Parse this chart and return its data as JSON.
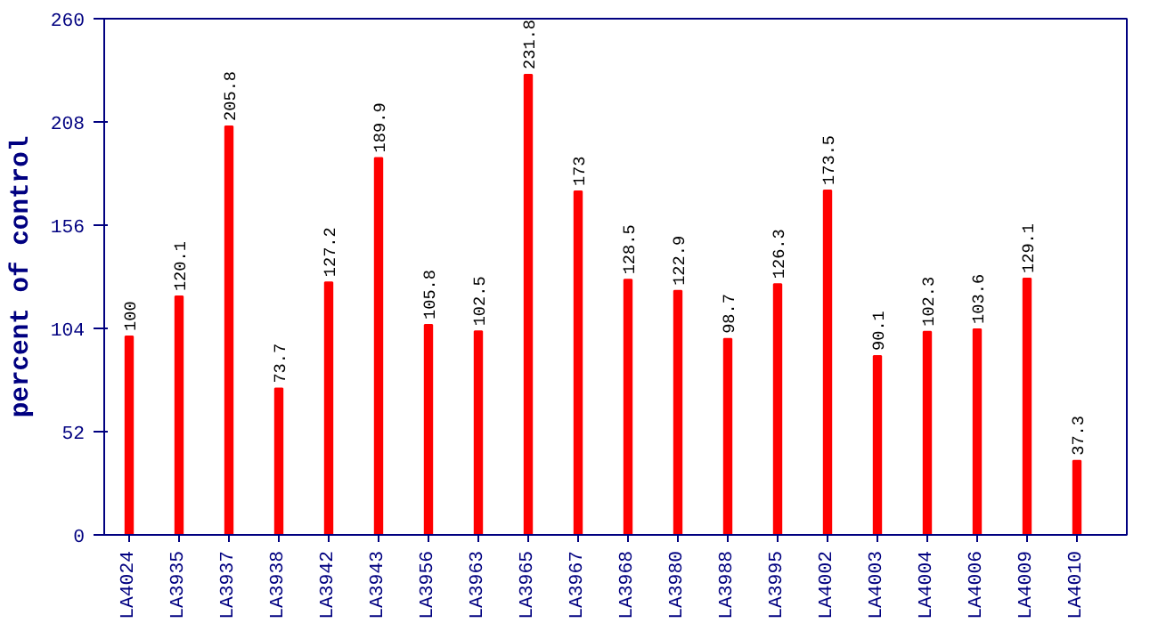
{
  "chart_data": {
    "type": "bar",
    "ylabel": "percent of control",
    "categories": [
      "LA4024",
      "LA3935",
      "LA3937",
      "LA3938",
      "LA3942",
      "LA3943",
      "LA3956",
      "LA3963",
      "LA3965",
      "LA3967",
      "LA3968",
      "LA3980",
      "LA3988",
      "LA3995",
      "LA4002",
      "LA4003",
      "LA4004",
      "LA4006",
      "LA4009",
      "LA4010"
    ],
    "values": [
      100,
      120.1,
      205.8,
      73.7,
      127.2,
      189.9,
      105.8,
      102.5,
      231.8,
      173,
      128.5,
      122.9,
      98.7,
      126.3,
      173.5,
      90.1,
      102.3,
      103.6,
      129.1,
      37.3
    ],
    "color": "#ff0000",
    "ylim": [
      0,
      260
    ],
    "yticks": [
      0,
      52,
      104,
      156,
      208,
      260
    ],
    "data_labels": true,
    "grid": false
  }
}
